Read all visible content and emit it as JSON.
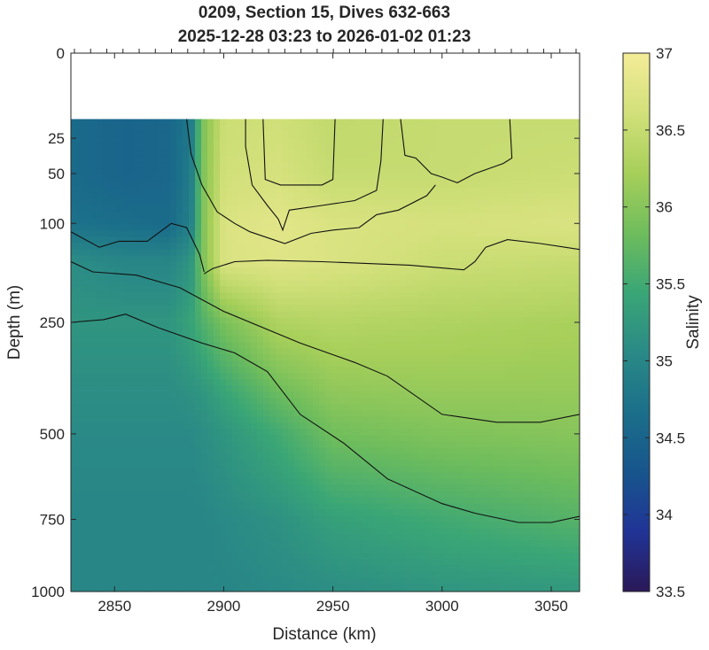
{
  "chart_data": {
    "type": "heatmap",
    "title_line1": "0209, Section 15, Dives 632-663",
    "title_line2": "2025-12-28 03:23 to 2026-01-02 01:23",
    "xlabel": "Distance (km)",
    "ylabel": "Depth (m)",
    "colorbar_label": "Salinity",
    "xlim": [
      2830,
      3063
    ],
    "ylim": [
      0,
      1000
    ],
    "y_scale": "sqrt",
    "x_ticks": [
      2850,
      2900,
      2950,
      3000,
      3050
    ],
    "y_ticks": [
      0,
      25,
      50,
      100,
      250,
      500,
      750,
      1000
    ],
    "clim": [
      33.5,
      37
    ],
    "colorbar_ticks": [
      "33.5",
      "34",
      "34.5",
      "35",
      "35.5",
      "36",
      "36.5",
      "37"
    ],
    "colormap": [
      "#2a1858",
      "#213496",
      "#17558c",
      "#1b6f8a",
      "#2a8a86",
      "#3aa676",
      "#6fbd5c",
      "#a7cf5a",
      "#d2e07a",
      "#f4ec98"
    ],
    "data_top_depth": 15,
    "grid": false,
    "salinity_samples": {
      "x": [
        2830,
        2855,
        2875,
        2885,
        2890,
        2900,
        2925,
        2950,
        3000,
        3063
      ],
      "depth": [
        15,
        50,
        100,
        150,
        250,
        400,
        500,
        750,
        1000
      ],
      "values": [
        [
          34.6,
          34.5,
          34.55,
          34.8,
          35.9,
          36.55,
          36.6,
          36.45,
          36.5,
          36.5
        ],
        [
          34.6,
          34.5,
          34.55,
          34.85,
          35.9,
          36.6,
          36.65,
          36.5,
          36.5,
          36.55
        ],
        [
          34.7,
          34.65,
          34.6,
          34.9,
          35.9,
          36.7,
          36.8,
          36.7,
          36.65,
          36.7
        ],
        [
          35.1,
          35.0,
          35.0,
          35.2,
          35.9,
          36.7,
          36.75,
          36.7,
          36.55,
          36.5
        ],
        [
          35.2,
          35.2,
          35.2,
          35.4,
          35.6,
          35.9,
          36.3,
          36.35,
          36.3,
          36.25
        ],
        [
          35.1,
          35.1,
          35.1,
          35.15,
          35.2,
          35.4,
          35.8,
          36.05,
          36.1,
          36.1
        ],
        [
          35.05,
          35.05,
          35.05,
          35.05,
          35.1,
          35.2,
          35.5,
          35.85,
          35.95,
          36.0
        ],
        [
          35.0,
          35.0,
          35.0,
          35.0,
          35.0,
          35.05,
          35.15,
          35.35,
          35.5,
          35.65
        ],
        [
          35.0,
          35.0,
          35.0,
          35.0,
          35.0,
          35.0,
          35.05,
          35.1,
          35.2,
          35.25
        ]
      ]
    },
    "contours": [
      {
        "level": 36.75,
        "points": [
          [
            2918,
            15
          ],
          [
            2919,
            55
          ],
          [
            2926,
            60
          ],
          [
            2945,
            60
          ],
          [
            2950,
            55
          ],
          [
            2951,
            15
          ]
        ]
      },
      {
        "level": 36.5,
        "points": [
          [
            2910,
            15
          ],
          [
            2910,
            30
          ],
          [
            2913,
            60
          ],
          [
            2920,
            80
          ],
          [
            2925,
            95
          ],
          [
            2927,
            108
          ],
          [
            2930,
            85
          ],
          [
            2945,
            80
          ],
          [
            2960,
            75
          ],
          [
            2970,
            65
          ],
          [
            2972,
            40
          ],
          [
            2973,
            15
          ]
        ]
      },
      {
        "level": 36.5,
        "points": [
          [
            3031,
            15
          ],
          [
            3032,
            38
          ],
          [
            3028,
            42
          ],
          [
            3015,
            50
          ],
          [
            3007,
            58
          ],
          [
            3000,
            53
          ],
          [
            2995,
            50
          ],
          [
            2988,
            38
          ],
          [
            2983,
            36
          ],
          [
            2981,
            15
          ]
        ]
      },
      {
        "level": 36.4,
        "points": [
          [
            2883,
            15
          ],
          [
            2885,
            35
          ],
          [
            2890,
            60
          ],
          [
            2897,
            87
          ],
          [
            2905,
            100
          ],
          [
            2912,
            110
          ],
          [
            2928,
            125
          ],
          [
            2940,
            112
          ],
          [
            2950,
            108
          ],
          [
            2962,
            105
          ],
          [
            2970,
            90
          ],
          [
            2980,
            85
          ],
          [
            2993,
            70
          ],
          [
            2997,
            60
          ]
        ]
      },
      {
        "level": 36.3,
        "points": [
          [
            2891,
            168
          ],
          [
            2895,
            160
          ],
          [
            2905,
            150
          ],
          [
            2920,
            148
          ],
          [
            2945,
            150
          ],
          [
            2985,
            155
          ],
          [
            3010,
            162
          ],
          [
            3015,
            150
          ],
          [
            3020,
            130
          ],
          [
            3030,
            120
          ],
          [
            3045,
            125
          ],
          [
            3063,
            133
          ]
        ]
      },
      {
        "level": 35.5,
        "points": [
          [
            2830,
            110
          ],
          [
            2843,
            130
          ],
          [
            2852,
            122
          ],
          [
            2865,
            122
          ],
          [
            2876,
            100
          ],
          [
            2883,
            105
          ],
          [
            2889,
            140
          ],
          [
            2891,
            165
          ]
        ]
      },
      {
        "level": 35.3,
        "points": [
          [
            2830,
            150
          ],
          [
            2840,
            165
          ],
          [
            2860,
            170
          ],
          [
            2880,
            190
          ],
          [
            2900,
            230
          ],
          [
            2935,
            290
          ],
          [
            2960,
            330
          ],
          [
            2975,
            360
          ],
          [
            3000,
            450
          ],
          [
            3025,
            470
          ],
          [
            3045,
            470
          ],
          [
            3063,
            450
          ]
        ]
      },
      {
        "level": 35.1,
        "points": [
          [
            2830,
            250
          ],
          [
            2845,
            245
          ],
          [
            2855,
            235
          ],
          [
            2870,
            260
          ],
          [
            2890,
            290
          ],
          [
            2905,
            310
          ],
          [
            2920,
            350
          ],
          [
            2935,
            450
          ],
          [
            2955,
            525
          ],
          [
            2975,
            625
          ],
          [
            3000,
            700
          ],
          [
            3015,
            730
          ],
          [
            3035,
            760
          ],
          [
            3050,
            760
          ],
          [
            3063,
            740
          ]
        ]
      }
    ]
  }
}
